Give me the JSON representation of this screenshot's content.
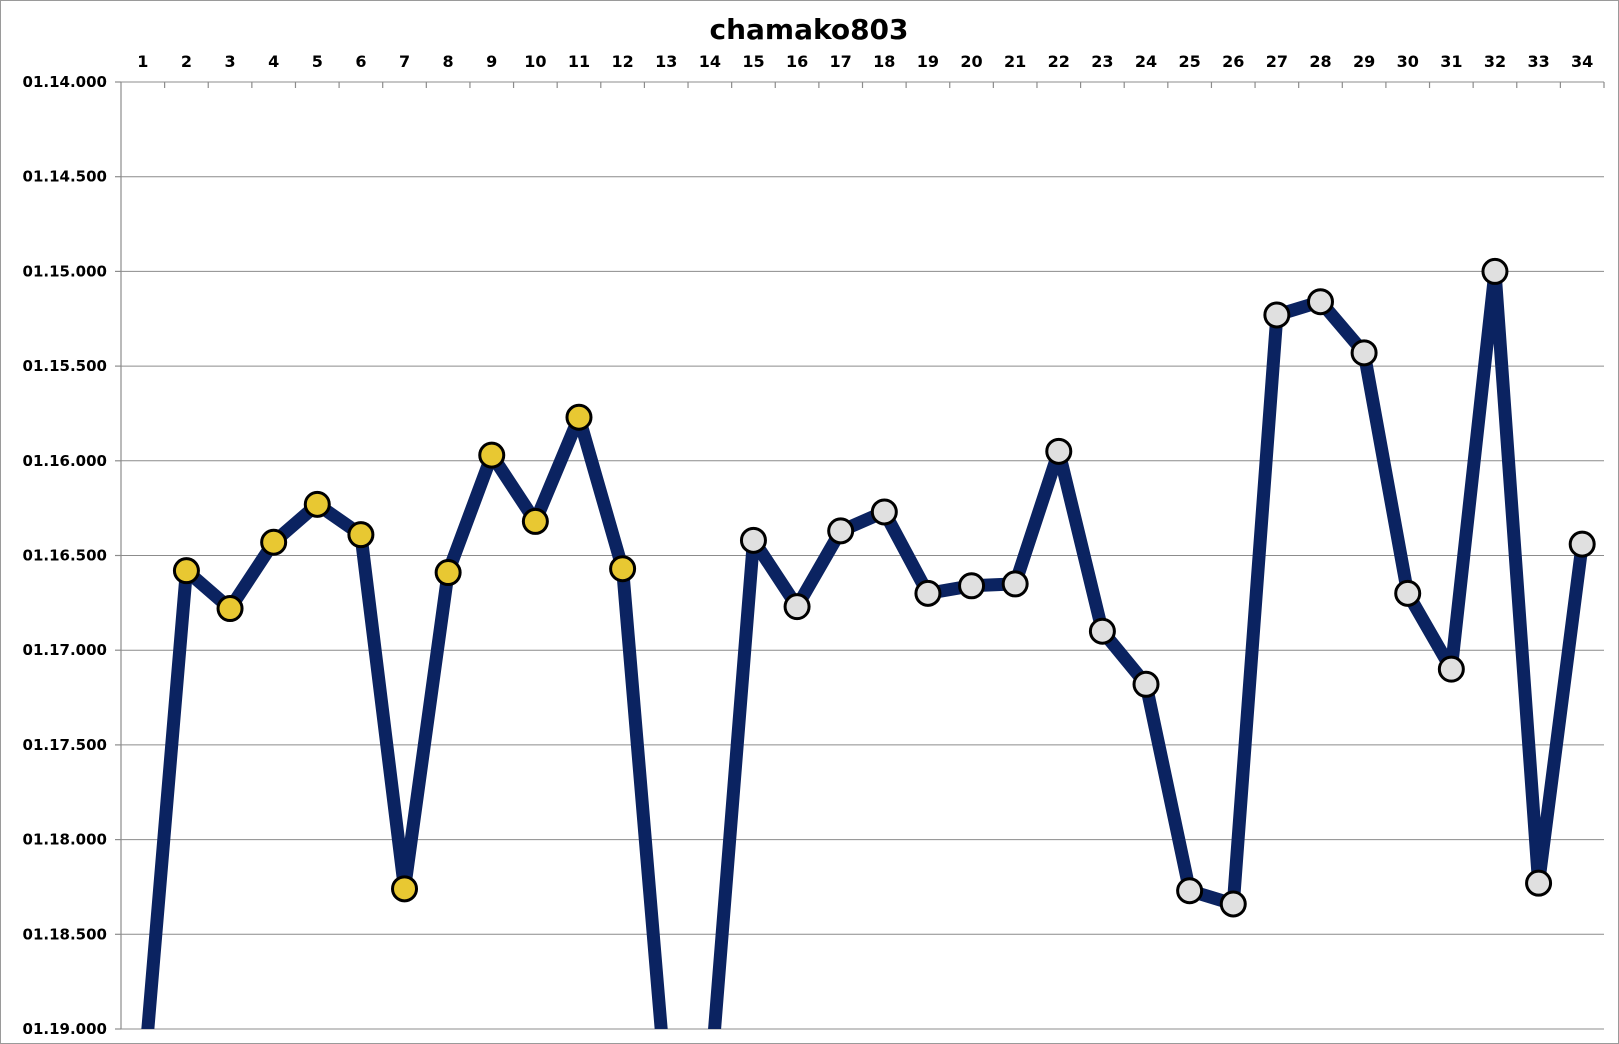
{
  "chart_data": {
    "type": "line",
    "title": "chamako803",
    "xlabel": "",
    "ylabel": "",
    "x": [
      1,
      2,
      3,
      4,
      5,
      6,
      7,
      8,
      9,
      10,
      11,
      12,
      13,
      14,
      15,
      16,
      17,
      18,
      19,
      20,
      21,
      22,
      23,
      24,
      25,
      26,
      27,
      28,
      29,
      30,
      31,
      32,
      33,
      34
    ],
    "categories": [
      "1",
      "2",
      "3",
      "4",
      "5",
      "6",
      "7",
      "8",
      "9",
      "10",
      "11",
      "12",
      "13",
      "14",
      "15",
      "16",
      "17",
      "18",
      "19",
      "20",
      "21",
      "22",
      "23",
      "24",
      "25",
      "26",
      "27",
      "28",
      "29",
      "30",
      "31",
      "32",
      "33",
      "34"
    ],
    "y_tick_labels": [
      "01.14.000",
      "01.14.500",
      "01.15.000",
      "01.15.500",
      "01.16.000",
      "01.16.500",
      "01.17.000",
      "01.17.500",
      "01.18.000",
      "01.18.500",
      "01.19.000"
    ],
    "y_unit_note_ms": [
      74000,
      74500,
      75000,
      75500,
      76000,
      76500,
      77000,
      77500,
      78000,
      78500,
      79000
    ],
    "ylim": [
      74000,
      79000
    ],
    "y_reversed": true,
    "grid": true,
    "legend": "none",
    "series": [
      {
        "values": [
          null,
          76580,
          76780,
          76430,
          76230,
          76390,
          78260,
          76590,
          75970,
          76320,
          75770,
          76570,
          null,
          null,
          76420,
          76770,
          76370,
          76270,
          76700,
          76660,
          76650,
          75950,
          76900,
          77180,
          78270,
          78340,
          75230,
          75160,
          75430,
          76700,
          77100,
          75000,
          78230,
          76440
        ],
        "offscale_points": [
          {
            "x": 1,
            "note": "below axis (> 01.19.000)"
          },
          {
            "x": 13,
            "note": "below axis (> 01.19.000)"
          },
          {
            "x": 14,
            "note": "below axis (> 01.19.000)"
          }
        ],
        "line_color": "#0b2361",
        "marker_colors": {
          "1-12": "#e8c832",
          "15-34": "#e0e0e0"
        }
      }
    ]
  }
}
